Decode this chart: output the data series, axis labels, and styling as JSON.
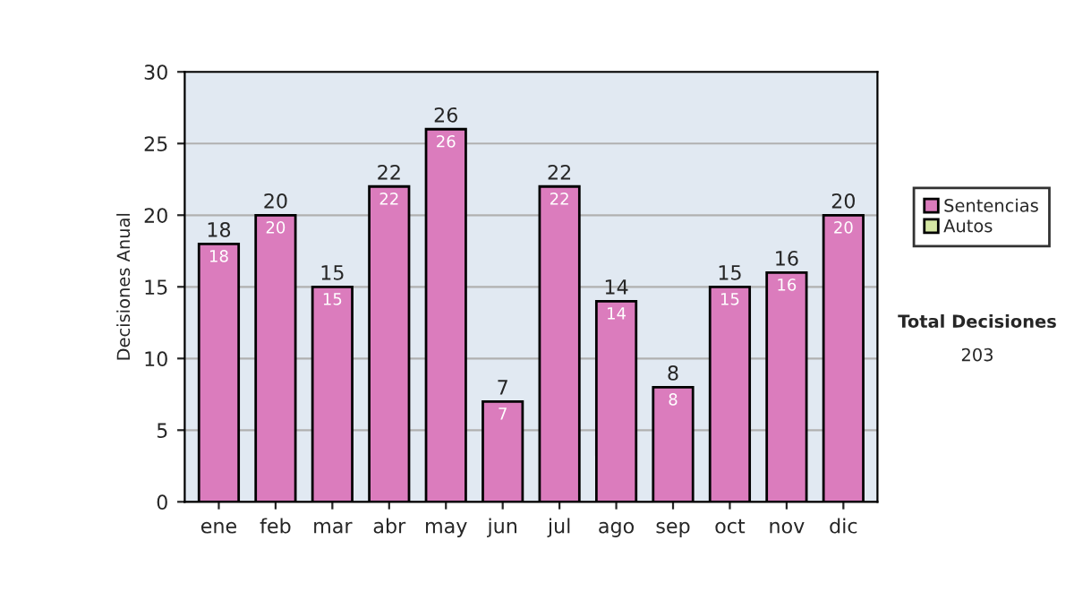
{
  "chart_data": {
    "type": "bar",
    "stacked": true,
    "ylabel": "Decisiones Anual",
    "categories": [
      "ene",
      "feb",
      "mar",
      "abr",
      "may",
      "jun",
      "jul",
      "ago",
      "sep",
      "oct",
      "nov",
      "dic"
    ],
    "series": [
      {
        "name": "Sentencias",
        "color": "#db7cbd",
        "values": [
          18,
          20,
          15,
          22,
          26,
          7,
          22,
          14,
          8,
          15,
          16,
          20
        ],
        "value_labels": [
          "18",
          "20",
          "15",
          "22",
          "26",
          "7",
          "22",
          "14",
          "8",
          "15",
          "16",
          "20"
        ]
      },
      {
        "name": "Autos",
        "color": "#d6e8a4",
        "values": [
          null,
          null,
          null,
          null,
          null,
          null,
          null,
          null,
          null,
          null,
          null,
          null
        ]
      }
    ],
    "totals": [
      "18",
      "20",
      "15",
      "22",
      "26",
      "7",
      "22",
      "14",
      "8",
      "15",
      "16",
      "20"
    ],
    "ylim": [
      0,
      30
    ],
    "yticks": [
      0,
      5,
      10,
      15,
      20,
      25,
      30
    ],
    "grid": "y",
    "legend": "right",
    "annotations": [
      "Total Decisiones",
      "203"
    ]
  }
}
